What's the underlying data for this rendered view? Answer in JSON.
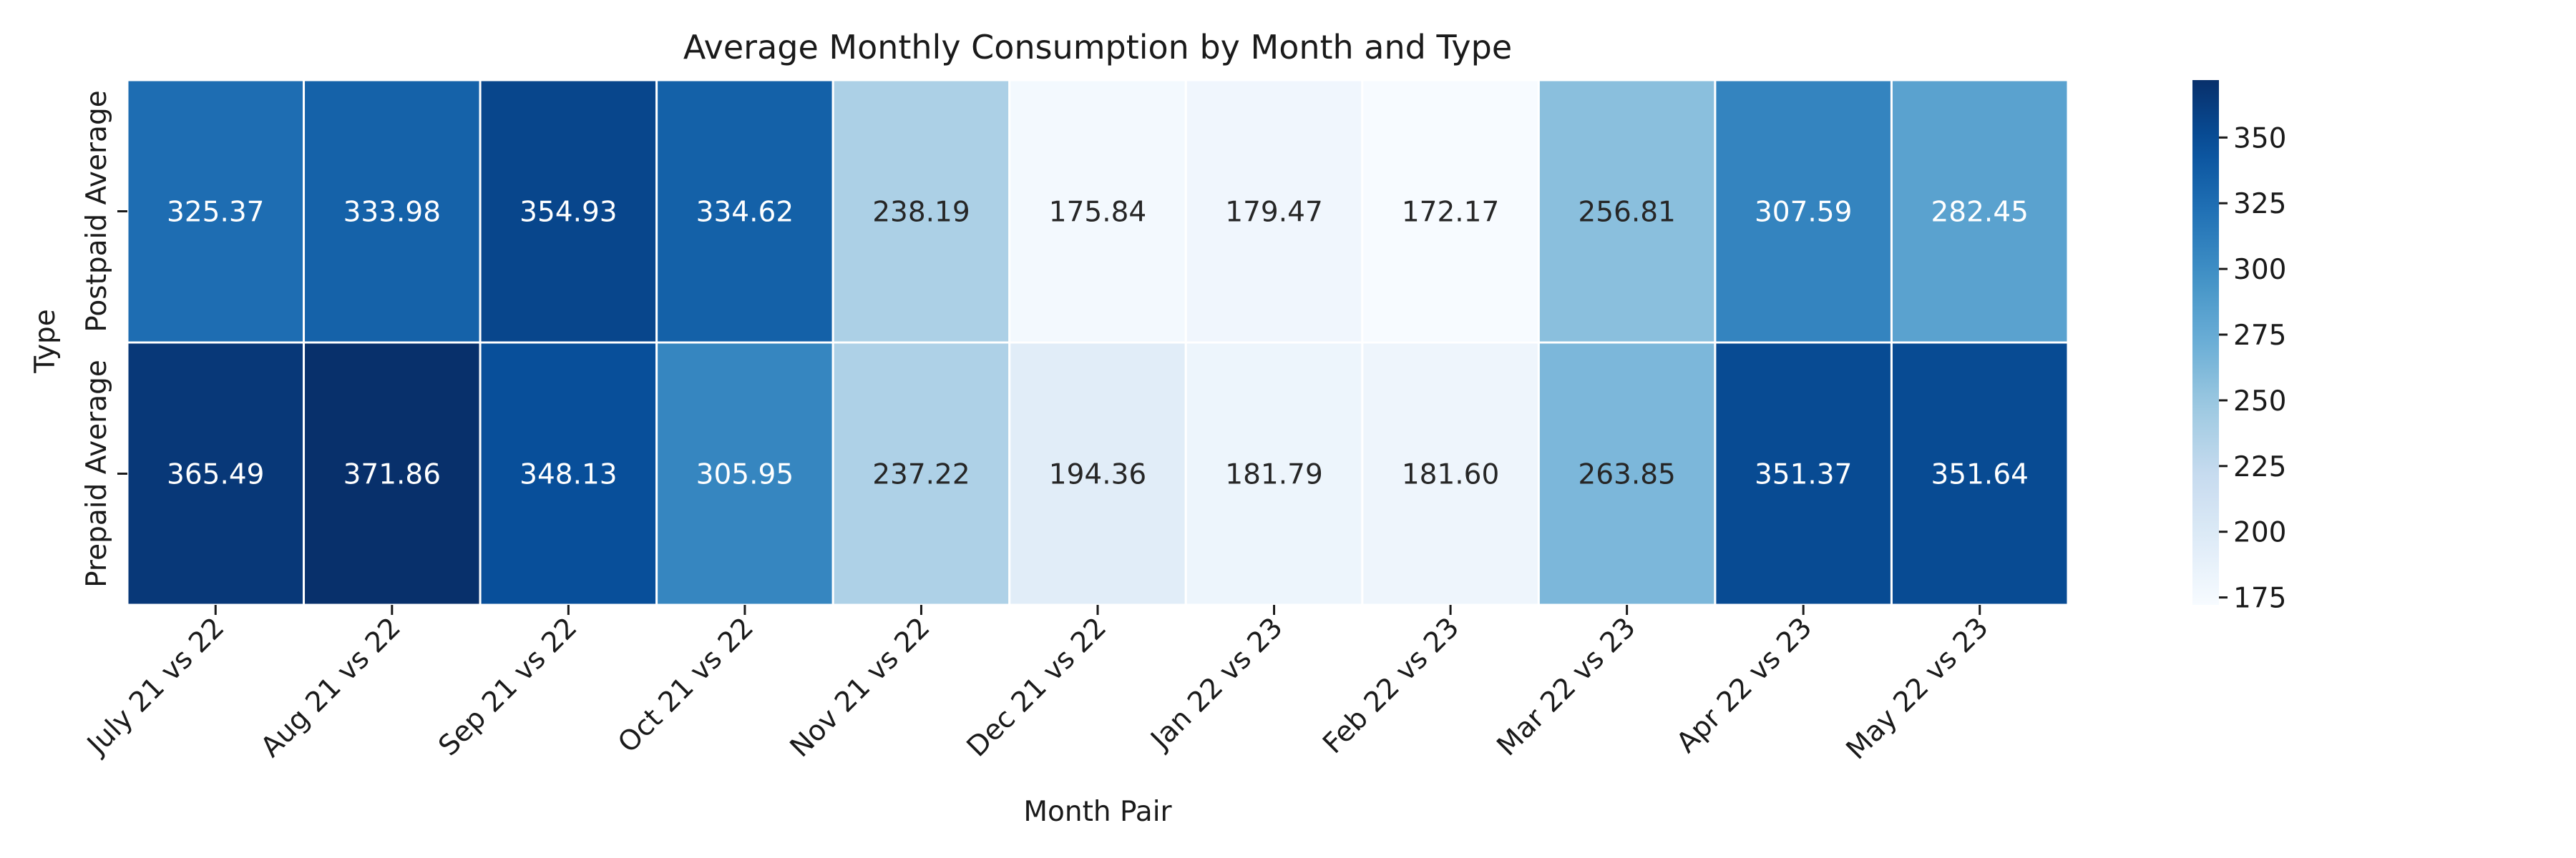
{
  "chart_data": {
    "type": "heatmap",
    "title": "Average Monthly Consumption by Month and Type",
    "xlabel": "Month Pair",
    "ylabel": "Type",
    "categories": [
      "July 21 vs 22",
      "Aug 21 vs 22",
      "Sep 21 vs 22",
      "Oct 21 vs 22",
      "Nov 21 vs 22",
      "Dec 21 vs 22",
      "Jan 22 vs 23",
      "Feb 22 vs 23",
      "Mar 22 vs 23",
      "Apr 22 vs 23",
      "May 22 vs 23"
    ],
    "rows": [
      "Postpaid Average",
      "Prepaid Average"
    ],
    "values": [
      [
        325.37,
        333.98,
        354.93,
        334.62,
        238.19,
        175.84,
        179.47,
        172.17,
        256.81,
        307.59,
        282.45
      ],
      [
        365.49,
        371.86,
        348.13,
        305.95,
        237.22,
        194.36,
        181.79,
        181.6,
        263.85,
        351.37,
        351.64
      ]
    ],
    "value_labels": [
      [
        "325.37",
        "333.98",
        "354.93",
        "334.62",
        "238.19",
        "175.84",
        "179.47",
        "172.17",
        "256.81",
        "307.59",
        "282.45"
      ],
      [
        "365.49",
        "371.86",
        "348.13",
        "305.95",
        "237.22",
        "194.36",
        "181.79",
        "181.60",
        "263.85",
        "351.37",
        "351.64"
      ]
    ],
    "colorbar": {
      "colormap": "Blues",
      "min": 172.17,
      "max": 371.86,
      "ticks": [
        175,
        200,
        225,
        250,
        275,
        300,
        325,
        350
      ],
      "tick_labels": [
        "175",
        "200",
        "225",
        "250",
        "275",
        "300",
        "325",
        "350"
      ]
    }
  }
}
